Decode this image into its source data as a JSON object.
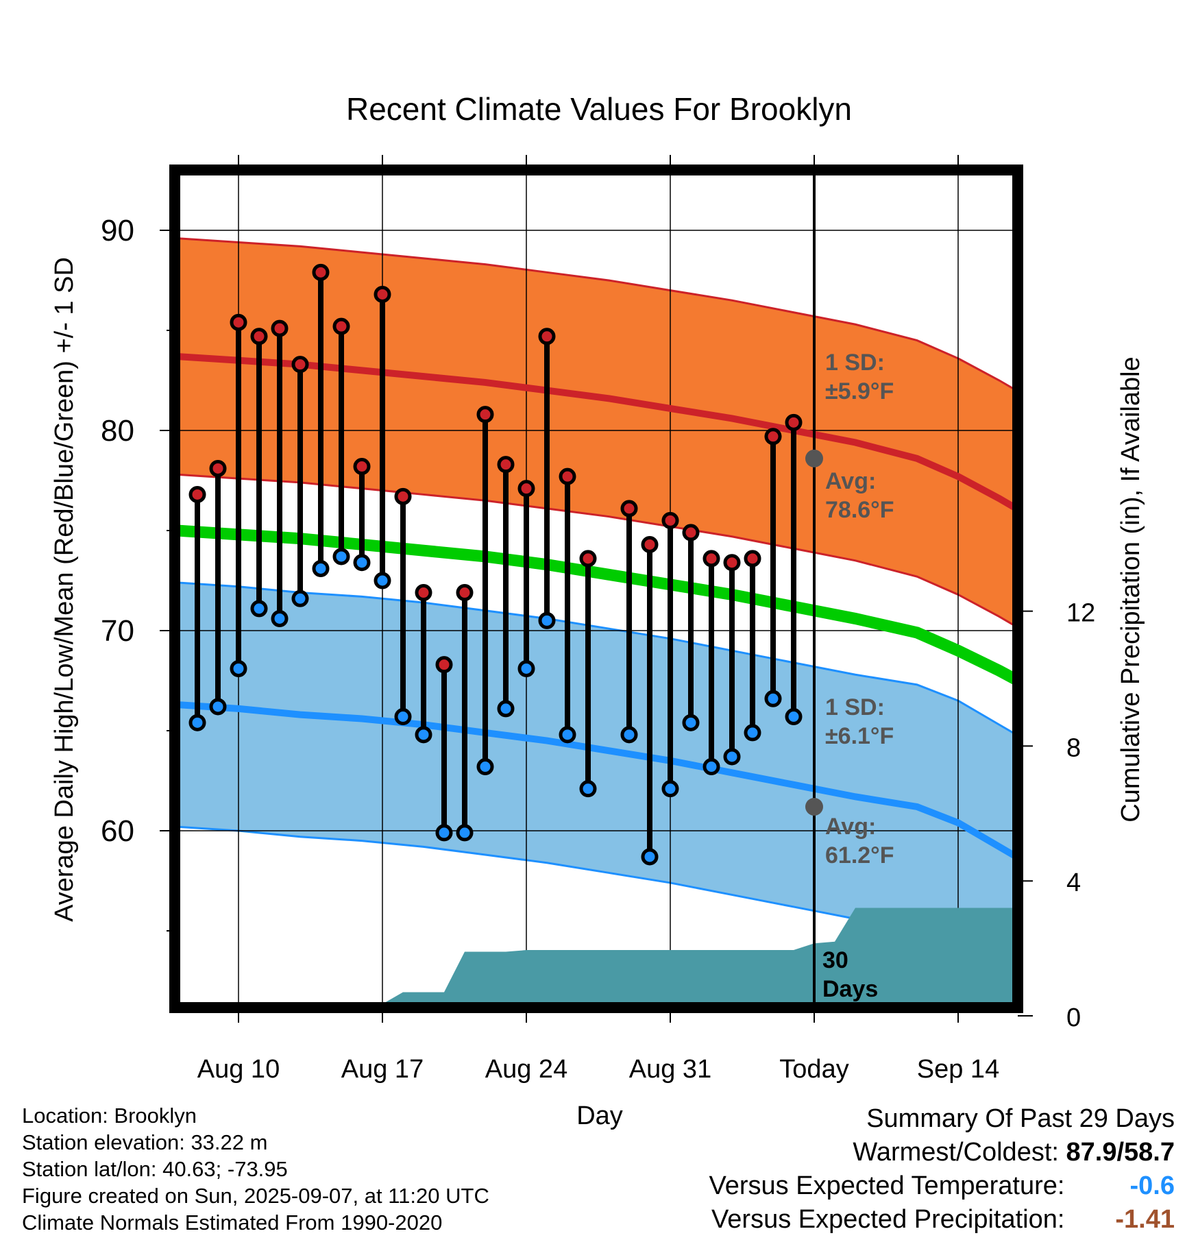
{
  "chart_data": {
    "type": "line",
    "title": "Recent Climate Values For Brooklyn",
    "xlabel": "Day",
    "ylabel": "Average Daily High/Low/Mean (Red/Blue/Green) +/- 1 SD",
    "y2label": "Cumulative Precipitation (in), If Available",
    "x_ticks": [
      "Aug 10",
      "Aug 17",
      "Aug 24",
      "Aug 31",
      "Today",
      "Sep 14"
    ],
    "y_ticks": [
      "60",
      "70",
      "80",
      "90"
    ],
    "y2_ticks": [
      "0",
      "4",
      "8",
      "12"
    ],
    "ylim": [
      51,
      94
    ],
    "y2lim": [
      0,
      19.3
    ],
    "xlim_days": [
      "2025-08-07",
      "2025-09-17"
    ],
    "grid": true,
    "daily_high": [
      76.8,
      78.1,
      85.4,
      84.7,
      85.1,
      83.3,
      87.9,
      85.2,
      78.2,
      86.8,
      76.7,
      71.9,
      68.3,
      71.9,
      80.8,
      78.3,
      77.1,
      84.7,
      77.7,
      73.6,
      null,
      76.1,
      74.3,
      75.5,
      74.9,
      73.6,
      73.4,
      73.6,
      79.7,
      80.4
    ],
    "daily_low": [
      65.4,
      66.2,
      68.1,
      71.1,
      70.6,
      71.6,
      73.1,
      73.7,
      73.4,
      72.5,
      65.7,
      64.8,
      59.9,
      59.9,
      63.2,
      66.1,
      68.1,
      70.5,
      64.8,
      62.1,
      null,
      64.8,
      58.7,
      62.1,
      65.4,
      63.2,
      63.7,
      64.9,
      66.6,
      65.7
    ],
    "normal_high": [
      83.7,
      83.5,
      83.3,
      83.0,
      82.7,
      82.4,
      82.0,
      81.6,
      81.1,
      80.6,
      80.0,
      79.4,
      78.6,
      77.7,
      76.6,
      75.4
    ],
    "normal_low": [
      66.3,
      66.1,
      65.8,
      65.6,
      65.3,
      64.9,
      64.5,
      64.0,
      63.5,
      62.9,
      62.3,
      61.7,
      61.2,
      60.4,
      59.2,
      58.0
    ],
    "normal_mean": [
      75.0,
      74.8,
      74.6,
      74.3,
      74.0,
      73.7,
      73.3,
      72.8,
      72.3,
      71.8,
      71.2,
      70.6,
      69.9,
      69.0,
      68.0,
      66.9
    ],
    "normal_x_days": [
      0,
      3,
      6,
      9,
      12,
      15,
      18,
      21,
      24,
      27,
      30,
      33,
      36,
      38,
      40,
      42
    ],
    "high_sd": 5.9,
    "low_sd": 6.1,
    "precip_days": [
      0,
      5,
      6,
      9,
      10,
      12,
      13,
      15,
      16,
      19,
      20,
      29,
      30,
      31,
      32,
      42
    ],
    "precip_cum": [
      0.0,
      0.0,
      0.35,
      0.35,
      0.7,
      0.7,
      1.9,
      1.9,
      1.95,
      1.95,
      1.95,
      1.95,
      2.15,
      2.2,
      3.2,
      3.2
    ],
    "series": [
      {
        "name": "High",
        "color": "#cc2229"
      },
      {
        "name": "Low",
        "color": "#1e90ff"
      },
      {
        "name": "Mean",
        "color": "#00cc00"
      },
      {
        "name": "Precipitation",
        "color": "#4a9aa5"
      }
    ]
  },
  "annotations": {
    "high_sd_label": "1 SD:",
    "high_sd_value": "±5.9°F",
    "high_avg_label": "Avg:",
    "high_avg_value": "78.6°F",
    "low_sd_label": "1 SD:",
    "low_sd_value": "±6.1°F",
    "low_avg_label": "Avg:",
    "low_avg_value": "61.2°F",
    "window_label_1": "30",
    "window_label_2": "Days"
  },
  "info": {
    "location": "Location: Brooklyn",
    "elevation": "Station elevation: 33.22 m",
    "latlon": "Station lat/lon: 40.63; -73.95",
    "created": "Figure created on Sun, 2025-09-07, at 11:20 UTC",
    "normals": "Climate Normals Estimated From 1990-2020"
  },
  "summary": {
    "heading": "Summary Of Past 29 Days",
    "warmest_label": "Warmest/Coldest:",
    "warmest_value": "87.9/58.7",
    "temp_label": "Versus Expected Temperature:",
    "temp_value": "-0.6",
    "temp_color": "#1e90ff",
    "precip_label": "Versus Expected Precipitation:",
    "precip_value": "-1.41",
    "precip_color": "#a0522d"
  },
  "colors": {
    "high_band": "#f47a30",
    "low_band": "#85c1e6",
    "annotation_text": "#555555"
  }
}
